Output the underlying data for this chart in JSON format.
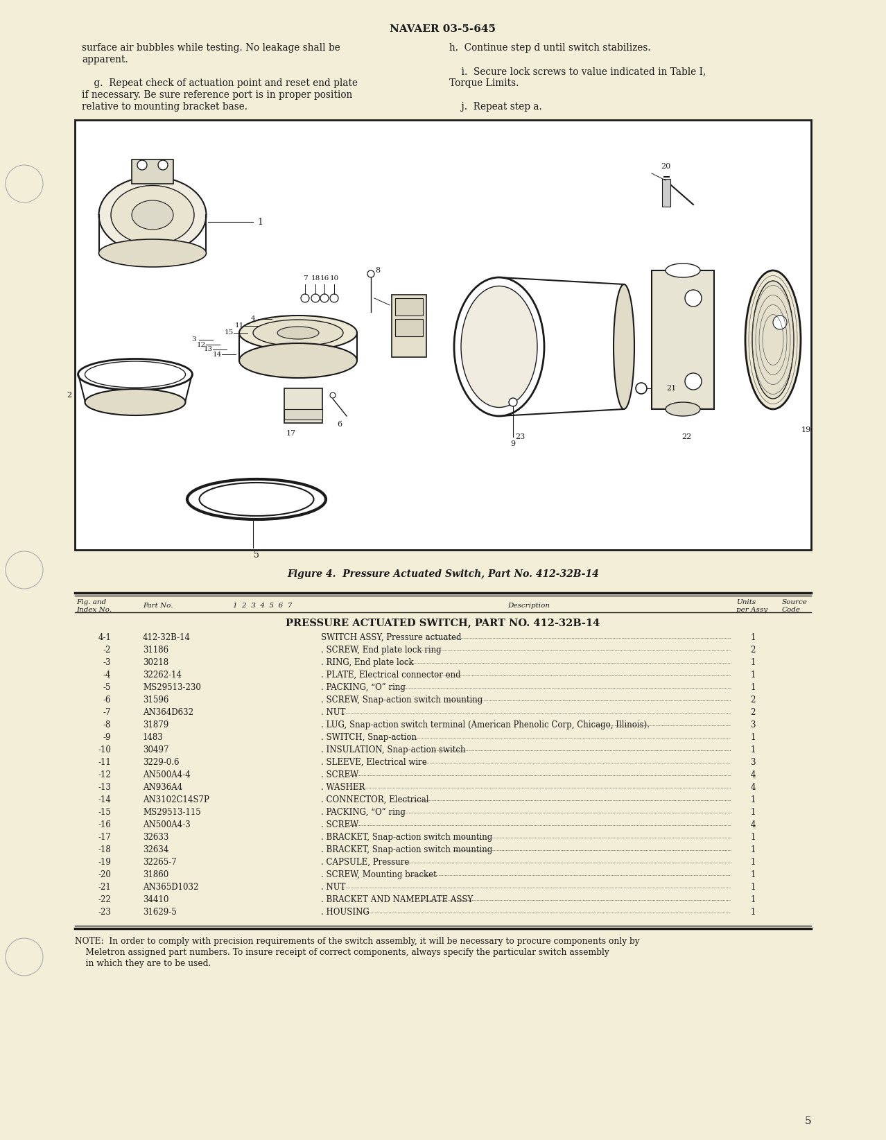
{
  "page_bg": "#f2eed8",
  "header_text": "NAVAER 03-5-645",
  "page_number": "5",
  "body_text_left_col": [
    "surface air bubbles while testing. No leakage shall be",
    "apparent.",
    "",
    "    g.  Repeat check of actuation point and reset end plate",
    "if necessary. Be sure reference port is in proper position",
    "relative to mounting bracket base."
  ],
  "body_text_right_col": [
    "h.  Continue step d until switch stabilizes.",
    "",
    "    i.  Secure lock screws to value indicated in Table I,",
    "Torque Limits.",
    "",
    "    j.  Repeat step a."
  ],
  "figure_caption": "Figure 4.  Pressure Actuated Switch, Part No. 412-32B-14",
  "table_header_title": "PRESSURE ACTUATED SWITCH, PART NO. 412-32B-14",
  "parts_list": [
    [
      "4-1",
      "412-32B-14",
      "SWITCH ASSY, Pressure actuated",
      "1"
    ],
    [
      "-2",
      "31186",
      ". SCREW, End plate lock ring",
      "2"
    ],
    [
      "-3",
      "30218",
      ". RING, End plate lock",
      "1"
    ],
    [
      "-4",
      "32262-14",
      ". PLATE, Electrical connector end",
      "1"
    ],
    [
      "-5",
      "MS29513-230",
      ". PACKING, “O” ring",
      "1"
    ],
    [
      "-6",
      "31596",
      ". SCREW, Snap-action switch mounting",
      "2"
    ],
    [
      "-7",
      "AN364D632",
      ". NUT",
      "2"
    ],
    [
      "-8",
      "31879",
      ". LUG, Snap-action switch terminal (American Phenolic Corp, Chicago, Illinois).",
      "3"
    ],
    [
      "-9",
      "1483",
      ". SWITCH, Snap-action",
      "1"
    ],
    [
      "-10",
      "30497",
      ". INSULATION, Snap-action switch",
      "1"
    ],
    [
      "-11",
      "3229-0.6",
      ". SLEEVE, Electrical wire",
      "3"
    ],
    [
      "-12",
      "AN500A4-4",
      ". SCREW",
      "4"
    ],
    [
      "-13",
      "AN936A4",
      ". WASHER",
      "4"
    ],
    [
      "-14",
      "AN3102C14S7P",
      ". CONNECTOR, Electrical",
      "1"
    ],
    [
      "-15",
      "MS29513-115",
      ". PACKING, “O” ring",
      "1"
    ],
    [
      "-16",
      "AN500A4-3",
      ". SCREW",
      "4"
    ],
    [
      "-17",
      "32633",
      ". BRACKET, Snap-action switch mounting",
      "1"
    ],
    [
      "-18",
      "32634",
      ". BRACKET, Snap-action switch mounting",
      "1"
    ],
    [
      "-19",
      "32265-7",
      ". CAPSULE, Pressure",
      "1"
    ],
    [
      "-20",
      "31860",
      ". SCREW, Mounting bracket",
      "1"
    ],
    [
      "-21",
      "AN365D1032",
      ". NUT",
      "1"
    ],
    [
      "-22",
      "34410",
      ". BRACKET AND NAMEPLATE ASSY",
      "1"
    ],
    [
      "-23",
      "31629-5",
      ". HOUSING",
      "1"
    ]
  ],
  "note_text": "NOTE:  In order to comply with precision requirements of the switch assembly, it will be necessary to procure components only by\n    Meletron assigned part numbers. To insure receipt of correct components, always specify the particular switch assembly\n    in which they are to be used."
}
